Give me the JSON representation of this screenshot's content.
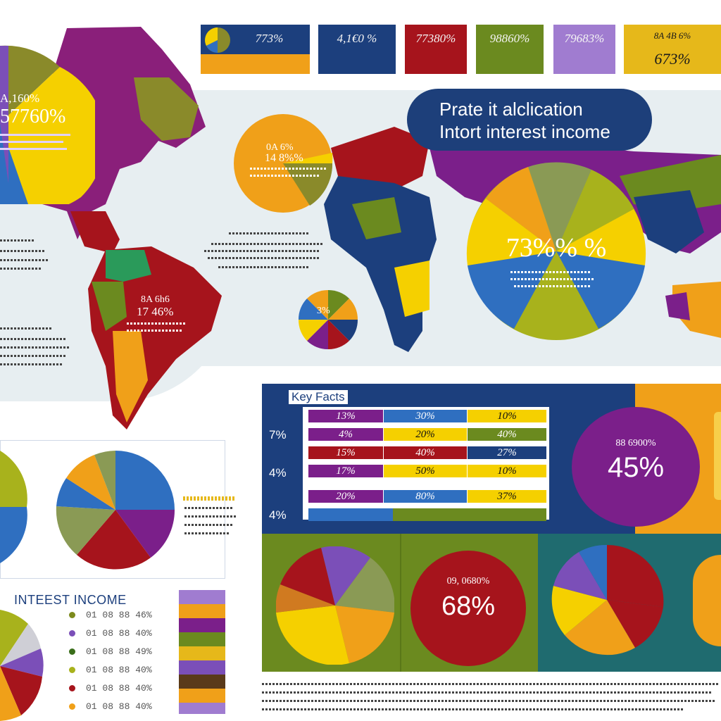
{
  "stat_cards": [
    {
      "value": "773%",
      "color": "#1c3f7d",
      "text_color": "#f4f4f4"
    },
    {
      "value": "4,1€0 %",
      "color": "#1c3f7d",
      "text_color": "#f4f4f4"
    },
    {
      "value": "77380%",
      "color": "#a6141c",
      "text_color": "#f4f4f4"
    },
    {
      "value": "98860%",
      "color": "#6b8a1f",
      "text_color": "#f4f4f4"
    },
    {
      "value": "79683%",
      "color": "#a07cd0",
      "text_color": "#f4f4f4"
    },
    {
      "value_top": "8A 4B 6%",
      "value": "673%",
      "color": "#e6b81a",
      "text_color": "#1a1a1a"
    }
  ],
  "title": {
    "line1": "Prate it alclication",
    "line2": "Intort interest income"
  },
  "map_labels": {
    "na_pie_top": "A,160%",
    "na_pie_big": "57760%",
    "orange_circle_top": "0A 6%",
    "orange_circle_main": "14 8%%",
    "sa_top": "8A 6h6",
    "sa_main": "17 46%",
    "small_pie": "3%",
    "big_pie_main": "73%% %"
  },
  "key_facts": {
    "title": "Key Facts",
    "row_labels": [
      "7%",
      "4%",
      "4%"
    ],
    "rows": [
      [
        "13%",
        "30%",
        "10%"
      ],
      [
        "4%",
        "20%",
        "40%"
      ],
      [
        "15%",
        "40%",
        "27%"
      ],
      [
        "17%",
        "50%",
        "10%"
      ],
      [
        "20%",
        "80%",
        "37%"
      ]
    ]
  },
  "purple_circle": {
    "small": "88 6900%",
    "main": "45%"
  },
  "red_circle": {
    "small": "09, 0680%",
    "main": "68%"
  },
  "interest_income": {
    "title": "INTEEST INCOME",
    "legend": [
      {
        "text": "01 08 88 46%",
        "color": "#7c8a1c"
      },
      {
        "text": "01 08 88 40%",
        "color": "#7b4fb8"
      },
      {
        "text": "01 08 88 49%",
        "color": "#3a6e1a"
      },
      {
        "text": "01 08 88 40%",
        "color": "#a8b21c"
      },
      {
        "text": "01 08 88 40%",
        "color": "#a6141c"
      },
      {
        "text": "01 08 88 40%",
        "color": "#f0a019"
      }
    ]
  },
  "colors": {
    "navy": "#1c3f7d",
    "red": "#a6141c",
    "olive": "#6b8a1f",
    "yellow": "#f5d000",
    "orange": "#f0a019",
    "purple": "#7b1f8a",
    "lavender": "#a07cd0",
    "blue": "#2f6fc0"
  }
}
